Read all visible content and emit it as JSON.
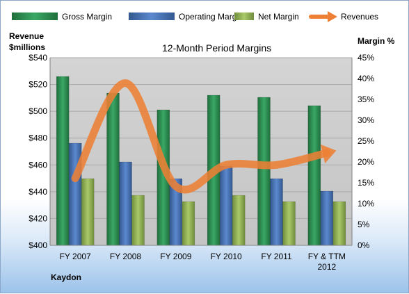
{
  "chart_data": {
    "type": "bar",
    "title": "12-Month Period Margins",
    "company": "Kaydon",
    "y_left_label": [
      "Revenue",
      "$millions"
    ],
    "y_right_label": "Margin %",
    "categories": [
      [
        "FY 2007"
      ],
      [
        "FY 2008"
      ],
      [
        "FY 2009"
      ],
      [
        "FY 2010"
      ],
      [
        "FY 2011"
      ],
      [
        "FY & TTM",
        "2012"
      ]
    ],
    "ylim_left": [
      400,
      540
    ],
    "ylim_right": [
      0,
      45
    ],
    "y_left_ticks": [
      "$400",
      "$420",
      "$440",
      "$460",
      "$480",
      "$500",
      "$520",
      "$540"
    ],
    "y_right_ticks": [
      "0%",
      "5%",
      "10%",
      "15%",
      "20%",
      "25%",
      "30%",
      "35%",
      "40%",
      "45%"
    ],
    "grid": true,
    "legend_position": "top",
    "series": [
      {
        "name": "Gross Margin",
        "type": "bar",
        "axis": "right",
        "color": "#2f8f55",
        "values": [
          40.5,
          36.5,
          32.5,
          36.0,
          35.5,
          33.5
        ]
      },
      {
        "name": "Operating Margin",
        "type": "bar",
        "axis": "right",
        "color": "#4a76b8",
        "values": [
          24.5,
          20.0,
          16.0,
          19.0,
          16.0,
          13.0
        ]
      },
      {
        "name": "Net Margin",
        "type": "bar",
        "axis": "right",
        "color": "#97b85a",
        "values": [
          16.0,
          12.0,
          10.5,
          12.0,
          10.5,
          10.5
        ]
      },
      {
        "name": "Revenues",
        "type": "line",
        "axis": "left",
        "color": "#ed8034",
        "values": [
          450,
          521,
          444,
          460,
          460,
          469
        ]
      }
    ]
  }
}
